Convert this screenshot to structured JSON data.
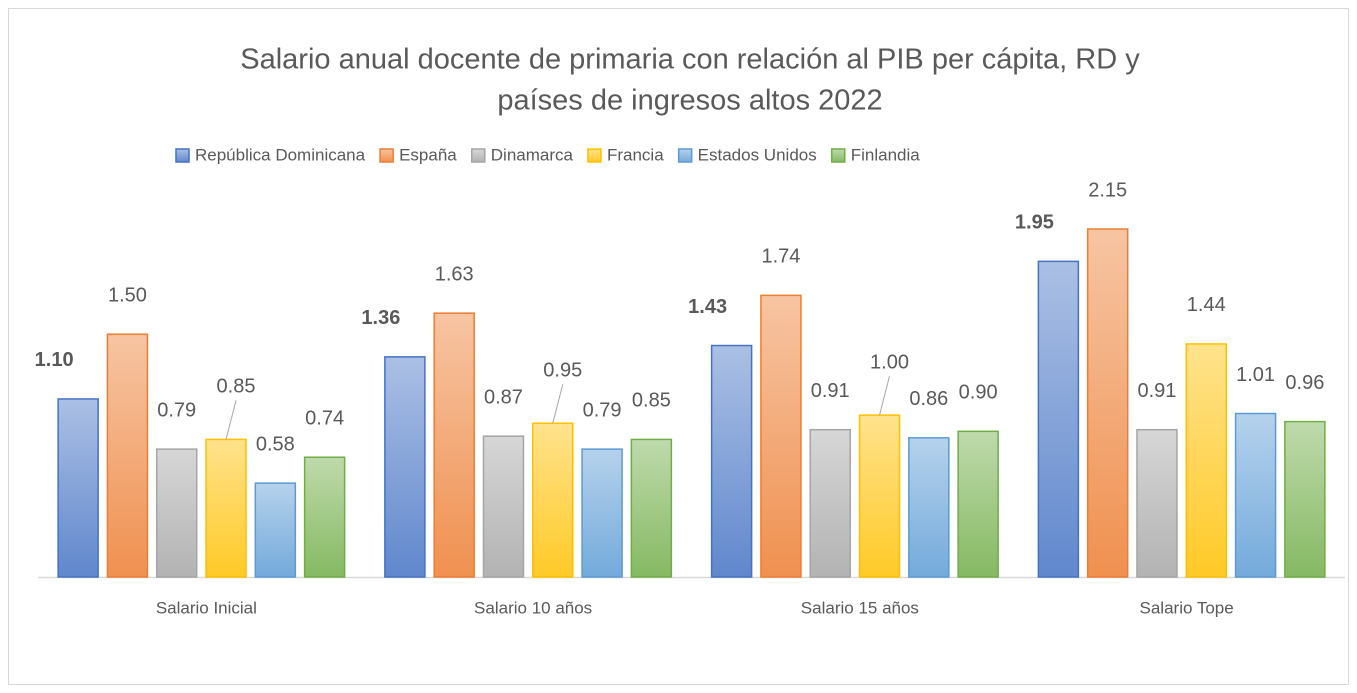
{
  "chart_data": {
    "type": "bar",
    "title": [
      "Salario anual docente de primaria con relación al PIB per cápita, RD y",
      "países de ingresos altos 2022"
    ],
    "categories": [
      "Salario Inicial",
      "Salario 10 años",
      "Salario 15 años",
      "Salario Tope"
    ],
    "series": [
      {
        "name": "República Dominicana",
        "color": "#4472c4",
        "values": [
          1.1,
          1.36,
          1.43,
          1.95
        ],
        "value_labels": [
          "1.10",
          "1.36",
          "1.43",
          "1.95"
        ]
      },
      {
        "name": "España",
        "color": "#ed7d31",
        "values": [
          1.5,
          1.63,
          1.74,
          2.15
        ],
        "value_labels": [
          "1.50",
          "1.63",
          "1.74",
          "2.15"
        ]
      },
      {
        "name": "Dinamarca",
        "color": "#a5a5a5",
        "values": [
          0.79,
          0.87,
          0.91,
          0.91
        ],
        "value_labels": [
          "0.79",
          "0.87",
          "0.91",
          "0.91"
        ]
      },
      {
        "name": "Francia",
        "color": "#ffc000",
        "values": [
          0.85,
          0.95,
          1.0,
          1.44
        ],
        "value_labels": [
          "0.85",
          "0.95",
          "1.00",
          "1.44"
        ]
      },
      {
        "name": "Estados Unidos",
        "color": "#5b9bd5",
        "values": [
          0.58,
          0.79,
          0.86,
          1.01
        ],
        "value_labels": [
          "0.58",
          "0.79",
          "0.86",
          "1.01"
        ]
      },
      {
        "name": "Finlandia",
        "color": "#70ad47",
        "values": [
          0.74,
          0.85,
          0.9,
          0.96
        ],
        "value_labels": [
          "0.74",
          "0.85",
          "0.90",
          "0.96"
        ]
      }
    ],
    "legend": "top"
  }
}
